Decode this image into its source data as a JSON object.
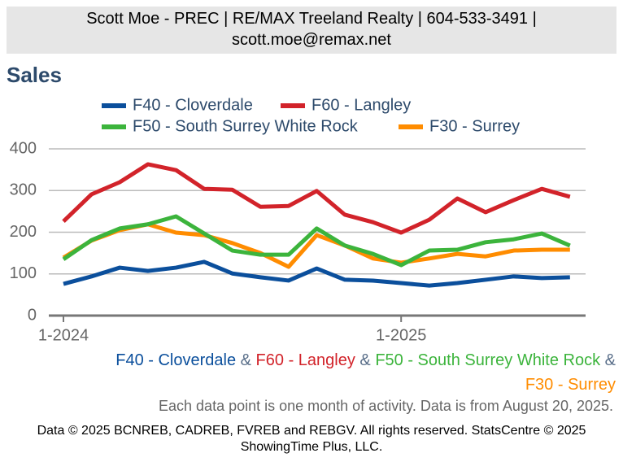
{
  "header": "Scott Moe - PREC | RE/MAX Treeland Realty | 604-533-3491 | scott.moe@remax.net",
  "chart_data": {
    "type": "line",
    "title": "Sales",
    "categories": [
      "1-2024",
      null,
      null,
      null,
      null,
      null,
      null,
      null,
      null,
      null,
      null,
      null,
      "1-2025",
      null,
      null,
      null,
      null,
      null,
      null
    ],
    "series": [
      {
        "name": "F40 - Cloverdale",
        "color": "#0b4f9c",
        "values": [
          76,
          94,
          115,
          107,
          115,
          129,
          101,
          92,
          84,
          113,
          86,
          84,
          78,
          72,
          78,
          86,
          94,
          90,
          92
        ]
      },
      {
        "name": "F60 - Langley",
        "color": "#d2232a",
        "values": [
          226,
          291,
          320,
          363,
          349,
          304,
          302,
          261,
          263,
          299,
          242,
          224,
          199,
          230,
          281,
          248,
          277,
          304,
          285
        ]
      },
      {
        "name": "F50 - South Surrey White Rock",
        "color": "#3cb43c",
        "values": [
          135,
          181,
          209,
          219,
          238,
          197,
          156,
          146,
          146,
          209,
          168,
          148,
          121,
          156,
          158,
          176,
          183,
          197,
          168
        ]
      },
      {
        "name": "F30 - Surrey",
        "color": "#ff8c00",
        "values": [
          139,
          180,
          205,
          219,
          199,
          193,
          174,
          150,
          117,
          193,
          168,
          137,
          127,
          137,
          148,
          142,
          156,
          158,
          158
        ]
      }
    ],
    "ylim": [
      0,
      400
    ],
    "yticks": [
      0,
      100,
      200,
      300,
      400
    ],
    "grid": true,
    "caption_caption_names": [
      "F40 - Cloverdale",
      "F60 - Langley",
      "F50 - South Surrey White Rock",
      "F30 - Surrey"
    ],
    "caption_separator": "&",
    "note": "Each data point is one month of activity. Data is from August 20, 2025.",
    "footer": "Data © 2025 BCNREB, CADREB, FVREB and REBGV. All rights reserved. StatsCentre © 2025 ShowingTime Plus, LLC."
  }
}
